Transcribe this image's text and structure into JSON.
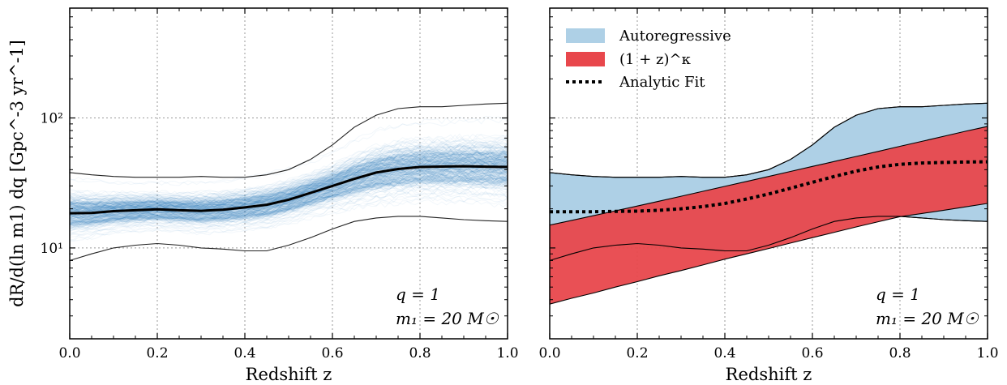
{
  "chart_data": [
    {
      "type": "line",
      "panel": "left",
      "xlabel": "Redshift z",
      "ylabel": "dR/d(ln m1) dq  [Gpc^-3 yr^-1]",
      "xlim": [
        0.0,
        1.0
      ],
      "ylim": [
        2.0,
        700
      ],
      "yscale": "log",
      "grid": true,
      "x_ticks": [
        "0.0",
        "0.2",
        "0.4",
        "0.6",
        "0.8",
        "1.0"
      ],
      "y_ticks": [
        {
          "value": 10,
          "label": "10¹"
        },
        {
          "value": 100,
          "label": "10²"
        }
      ],
      "annotations": [
        "q = 1",
        "m₁ = 20 M☉"
      ],
      "x": [
        0.0,
        0.05,
        0.1,
        0.15,
        0.2,
        0.25,
        0.3,
        0.35,
        0.4,
        0.45,
        0.5,
        0.55,
        0.6,
        0.65,
        0.7,
        0.75,
        0.8,
        0.85,
        0.9,
        0.95,
        1.0
      ],
      "series": [
        {
          "role": "median",
          "values": [
            18.5,
            18.6,
            19.2,
            19.5,
            19.8,
            19.5,
            19.3,
            19.7,
            20.5,
            21.5,
            23.5,
            26.5,
            30.0,
            34.0,
            38.0,
            40.5,
            42.0,
            42.3,
            42.5,
            42.2,
            42.0
          ]
        },
        {
          "role": "upper-90",
          "values": [
            38.0,
            36.5,
            35.5,
            35.0,
            35.0,
            35.0,
            35.5,
            35.0,
            35.0,
            36.5,
            40.0,
            48.0,
            62.0,
            85.0,
            105.0,
            118.0,
            122.0,
            122.0,
            125.0,
            128.0,
            130.0
          ]
        },
        {
          "role": "lower-90",
          "values": [
            8.0,
            9.0,
            10.0,
            10.5,
            10.8,
            10.5,
            10.0,
            9.8,
            9.5,
            9.5,
            10.5,
            12.0,
            14.0,
            16.0,
            17.0,
            17.5,
            17.5,
            17.0,
            16.5,
            16.2,
            16.0
          ]
        }
      ],
      "color": "#1f77b4"
    },
    {
      "type": "area",
      "panel": "right",
      "xlabel": "Redshift z",
      "xlim": [
        0.0,
        1.0
      ],
      "ylim": [
        2.0,
        700
      ],
      "yscale": "log",
      "grid": true,
      "x_ticks": [
        "0.0",
        "0.2",
        "0.4",
        "0.6",
        "0.8",
        "1.0"
      ],
      "annotations": [
        "q = 1",
        "m₁ = 20 M☉"
      ],
      "legend_position": "top-left",
      "x": [
        0.0,
        0.05,
        0.1,
        0.15,
        0.2,
        0.25,
        0.3,
        0.35,
        0.4,
        0.45,
        0.5,
        0.55,
        0.6,
        0.65,
        0.7,
        0.75,
        0.8,
        0.85,
        0.9,
        0.95,
        1.0
      ],
      "series": [
        {
          "name": "Autoregressive",
          "color": "#aed0e6",
          "upper": [
            38.0,
            36.5,
            35.5,
            35.0,
            35.0,
            35.0,
            35.5,
            35.0,
            35.0,
            36.5,
            40.0,
            48.0,
            62.0,
            85.0,
            105.0,
            118.0,
            122.0,
            122.0,
            125.0,
            128.0,
            130.0
          ],
          "lower": [
            8.0,
            9.0,
            10.0,
            10.5,
            10.8,
            10.5,
            10.0,
            9.8,
            9.5,
            9.5,
            10.5,
            12.0,
            14.0,
            16.0,
            17.0,
            17.5,
            17.5,
            17.0,
            16.5,
            16.2,
            16.0
          ]
        },
        {
          "name": "(1 + z)^κ",
          "color": "#e8474c",
          "upper": [
            15.0,
            16.3,
            17.7,
            19.3,
            21.0,
            22.9,
            25.0,
            27.3,
            29.8,
            32.5,
            35.5,
            38.8,
            42.4,
            46.3,
            50.6,
            55.3,
            60.5,
            66.1,
            72.3,
            79.0,
            86.0
          ],
          "lower": [
            3.7,
            4.1,
            4.5,
            5.0,
            5.5,
            6.1,
            6.7,
            7.4,
            8.2,
            9.0,
            9.9,
            10.9,
            12.0,
            13.2,
            14.5,
            15.9,
            17.4,
            18.4,
            19.5,
            20.7,
            22.0
          ]
        },
        {
          "name": "Analytic Fit",
          "style": "dotted",
          "values": [
            19.0,
            19.0,
            19.0,
            19.1,
            19.2,
            19.5,
            20.0,
            20.8,
            22.0,
            23.8,
            26.0,
            28.8,
            32.0,
            35.5,
            39.0,
            42.0,
            44.0,
            45.0,
            45.5,
            45.8,
            46.0
          ]
        }
      ]
    }
  ]
}
